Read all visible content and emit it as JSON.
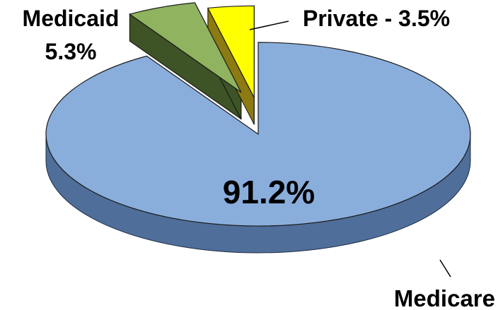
{
  "chart_data": {
    "type": "pie",
    "slices": [
      {
        "label": "Medicare",
        "value": 91.2,
        "value_label": "91.2%",
        "color": "#8aaedc",
        "side_color": "#4f6e9a"
      },
      {
        "label": "Medicaid",
        "value": 5.3,
        "value_label": "5.3%",
        "color": "#8fb35e",
        "side_color": "#3e5326"
      },
      {
        "label": "Private - 3.5%",
        "value": 3.5,
        "color": "#ffff00",
        "side_color": "#8c7a12"
      }
    ],
    "exploded": [
      "Medicaid",
      "Private - 3.5%"
    ],
    "style": "3d"
  }
}
